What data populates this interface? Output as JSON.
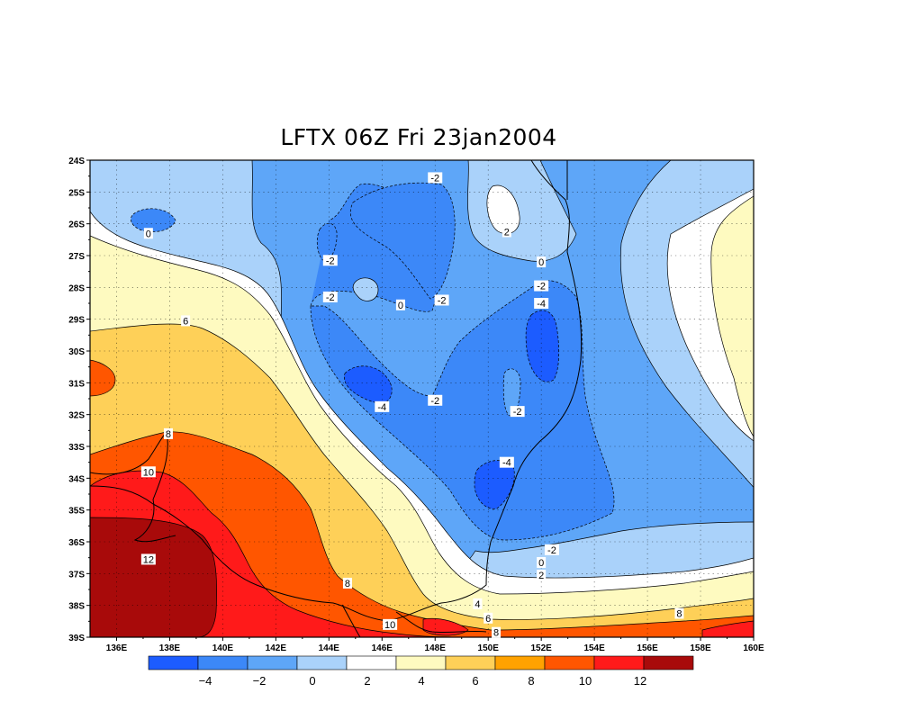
{
  "title": "LFTX 06Z Fri 23jan2004",
  "map": {
    "lat_labels": [
      "24S",
      "25S",
      "26S",
      "27S",
      "28S",
      "29S",
      "30S",
      "31S",
      "32S",
      "33S",
      "34S",
      "35S",
      "36S",
      "37S",
      "38S",
      "39S"
    ],
    "lon_labels": [
      "136E",
      "138E",
      "140E",
      "142E",
      "144E",
      "146E",
      "148E",
      "150E",
      "152E",
      "154E",
      "156E",
      "158E",
      "160E"
    ],
    "contour_labels": [
      {
        "text": "-2",
        "lon": 148.0,
        "lat": -24.55
      },
      {
        "text": "2",
        "lon": 150.7,
        "lat": -26.25
      },
      {
        "text": "0",
        "lon": 137.2,
        "lat": -26.3
      },
      {
        "text": "-2",
        "lon": 144.05,
        "lat": -27.15
      },
      {
        "text": "0",
        "lon": 152.0,
        "lat": -27.2
      },
      {
        "text": "-2",
        "lon": 144.05,
        "lat": -28.3
      },
      {
        "text": "0",
        "lon": 146.7,
        "lat": -28.55
      },
      {
        "text": "-2",
        "lon": 148.25,
        "lat": -28.4
      },
      {
        "text": "-2",
        "lon": 152.0,
        "lat": -27.95
      },
      {
        "text": "-4",
        "lon": 152.0,
        "lat": -28.5
      },
      {
        "text": "6",
        "lon": 138.6,
        "lat": -29.05
      },
      {
        "text": "-4",
        "lon": 146.0,
        "lat": -31.75
      },
      {
        "text": "-2",
        "lon": 148.0,
        "lat": -31.55
      },
      {
        "text": "-2",
        "lon": 151.1,
        "lat": -31.9
      },
      {
        "text": "8",
        "lon": 137.95,
        "lat": -32.6
      },
      {
        "text": "-4",
        "lon": 150.7,
        "lat": -33.5
      },
      {
        "text": "10",
        "lon": 137.2,
        "lat": -33.8
      },
      {
        "text": "-2",
        "lon": 152.4,
        "lat": -36.25
      },
      {
        "text": "0",
        "lon": 152.0,
        "lat": -36.65
      },
      {
        "text": "2",
        "lon": 152.0,
        "lat": -37.05
      },
      {
        "text": "12",
        "lon": 137.2,
        "lat": -36.55
      },
      {
        "text": "8",
        "lon": 144.7,
        "lat": -37.3
      },
      {
        "text": "4",
        "lon": 149.6,
        "lat": -37.95
      },
      {
        "text": "6",
        "lon": 150.0,
        "lat": -38.4
      },
      {
        "text": "8",
        "lon": 157.2,
        "lat": -38.25
      },
      {
        "text": "10",
        "lon": 146.3,
        "lat": -38.6
      },
      {
        "text": "8",
        "lon": 150.3,
        "lat": -38.85
      }
    ]
  },
  "colorbar": {
    "colors": [
      "#1c5cff",
      "#3c88f8",
      "#5ea6f8",
      "#aad2fa",
      "#ffffff",
      "#fefac0",
      "#fed058",
      "#ffa200",
      "#ff5600",
      "#ff1a1a",
      "#a80a0a"
    ],
    "labels": [
      "-4",
      "-2",
      "0",
      "2",
      "4",
      "6",
      "8",
      "10",
      "12"
    ]
  }
}
